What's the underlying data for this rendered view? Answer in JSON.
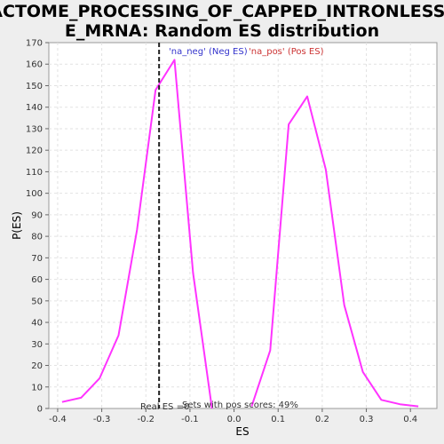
{
  "chart_data": {
    "type": "line",
    "title_lines": [
      "REACTOME_PROCESSING_OF_CAPPED_INTRONLESS_PR",
      "E_MRNA: Random ES distribution"
    ],
    "xlabel": "ES",
    "ylabel": "P(ES)",
    "xlim": [
      -0.42,
      0.46
    ],
    "ylim": [
      0,
      170
    ],
    "x_ticks": [
      "-0.4",
      "-0.3",
      "-0.2",
      "-0.1",
      "0.0",
      "0.1",
      "0.2",
      "0.3",
      "0.4"
    ],
    "x_tick_values": [
      -0.4,
      -0.3,
      -0.2,
      -0.1,
      0.0,
      0.1,
      0.2,
      0.3,
      0.4
    ],
    "y_ticks": [
      "0",
      "10",
      "20",
      "30",
      "40",
      "50",
      "60",
      "70",
      "80",
      "90",
      "100",
      "110",
      "120",
      "130",
      "140",
      "150",
      "160",
      "170"
    ],
    "y_tick_values": [
      0,
      10,
      20,
      30,
      40,
      50,
      60,
      70,
      80,
      90,
      100,
      110,
      120,
      130,
      140,
      150,
      160,
      170
    ],
    "grid": true,
    "series": [
      {
        "name": "'na_neg' (Neg ES)",
        "color": "#ff33ff",
        "x": [
          -0.39,
          -0.347,
          -0.305,
          -0.262,
          -0.22,
          -0.178,
          -0.135,
          -0.093,
          -0.05
        ],
        "y": [
          3,
          5,
          14,
          34,
          83,
          148,
          162,
          63,
          0
        ]
      },
      {
        "name": "'na_pos' (Pos ES)",
        "color": "#ff33ff",
        "x": [
          0.04,
          0.082,
          0.124,
          0.166,
          0.208,
          0.25,
          0.292,
          0.334,
          0.376,
          0.418
        ],
        "y": [
          1,
          27,
          132,
          145,
          111,
          48,
          17,
          4,
          2,
          1
        ]
      }
    ],
    "legend": [
      {
        "label": "'na_neg' (Neg ES)",
        "color": "#3333cc"
      },
      {
        "label": "'na_pos' (Pos ES)",
        "color": "#cc3333"
      }
    ],
    "real_es": {
      "x": -0.17,
      "label": "Real ES =0"
    },
    "annotation": "Sets with pos scores: 49%"
  }
}
